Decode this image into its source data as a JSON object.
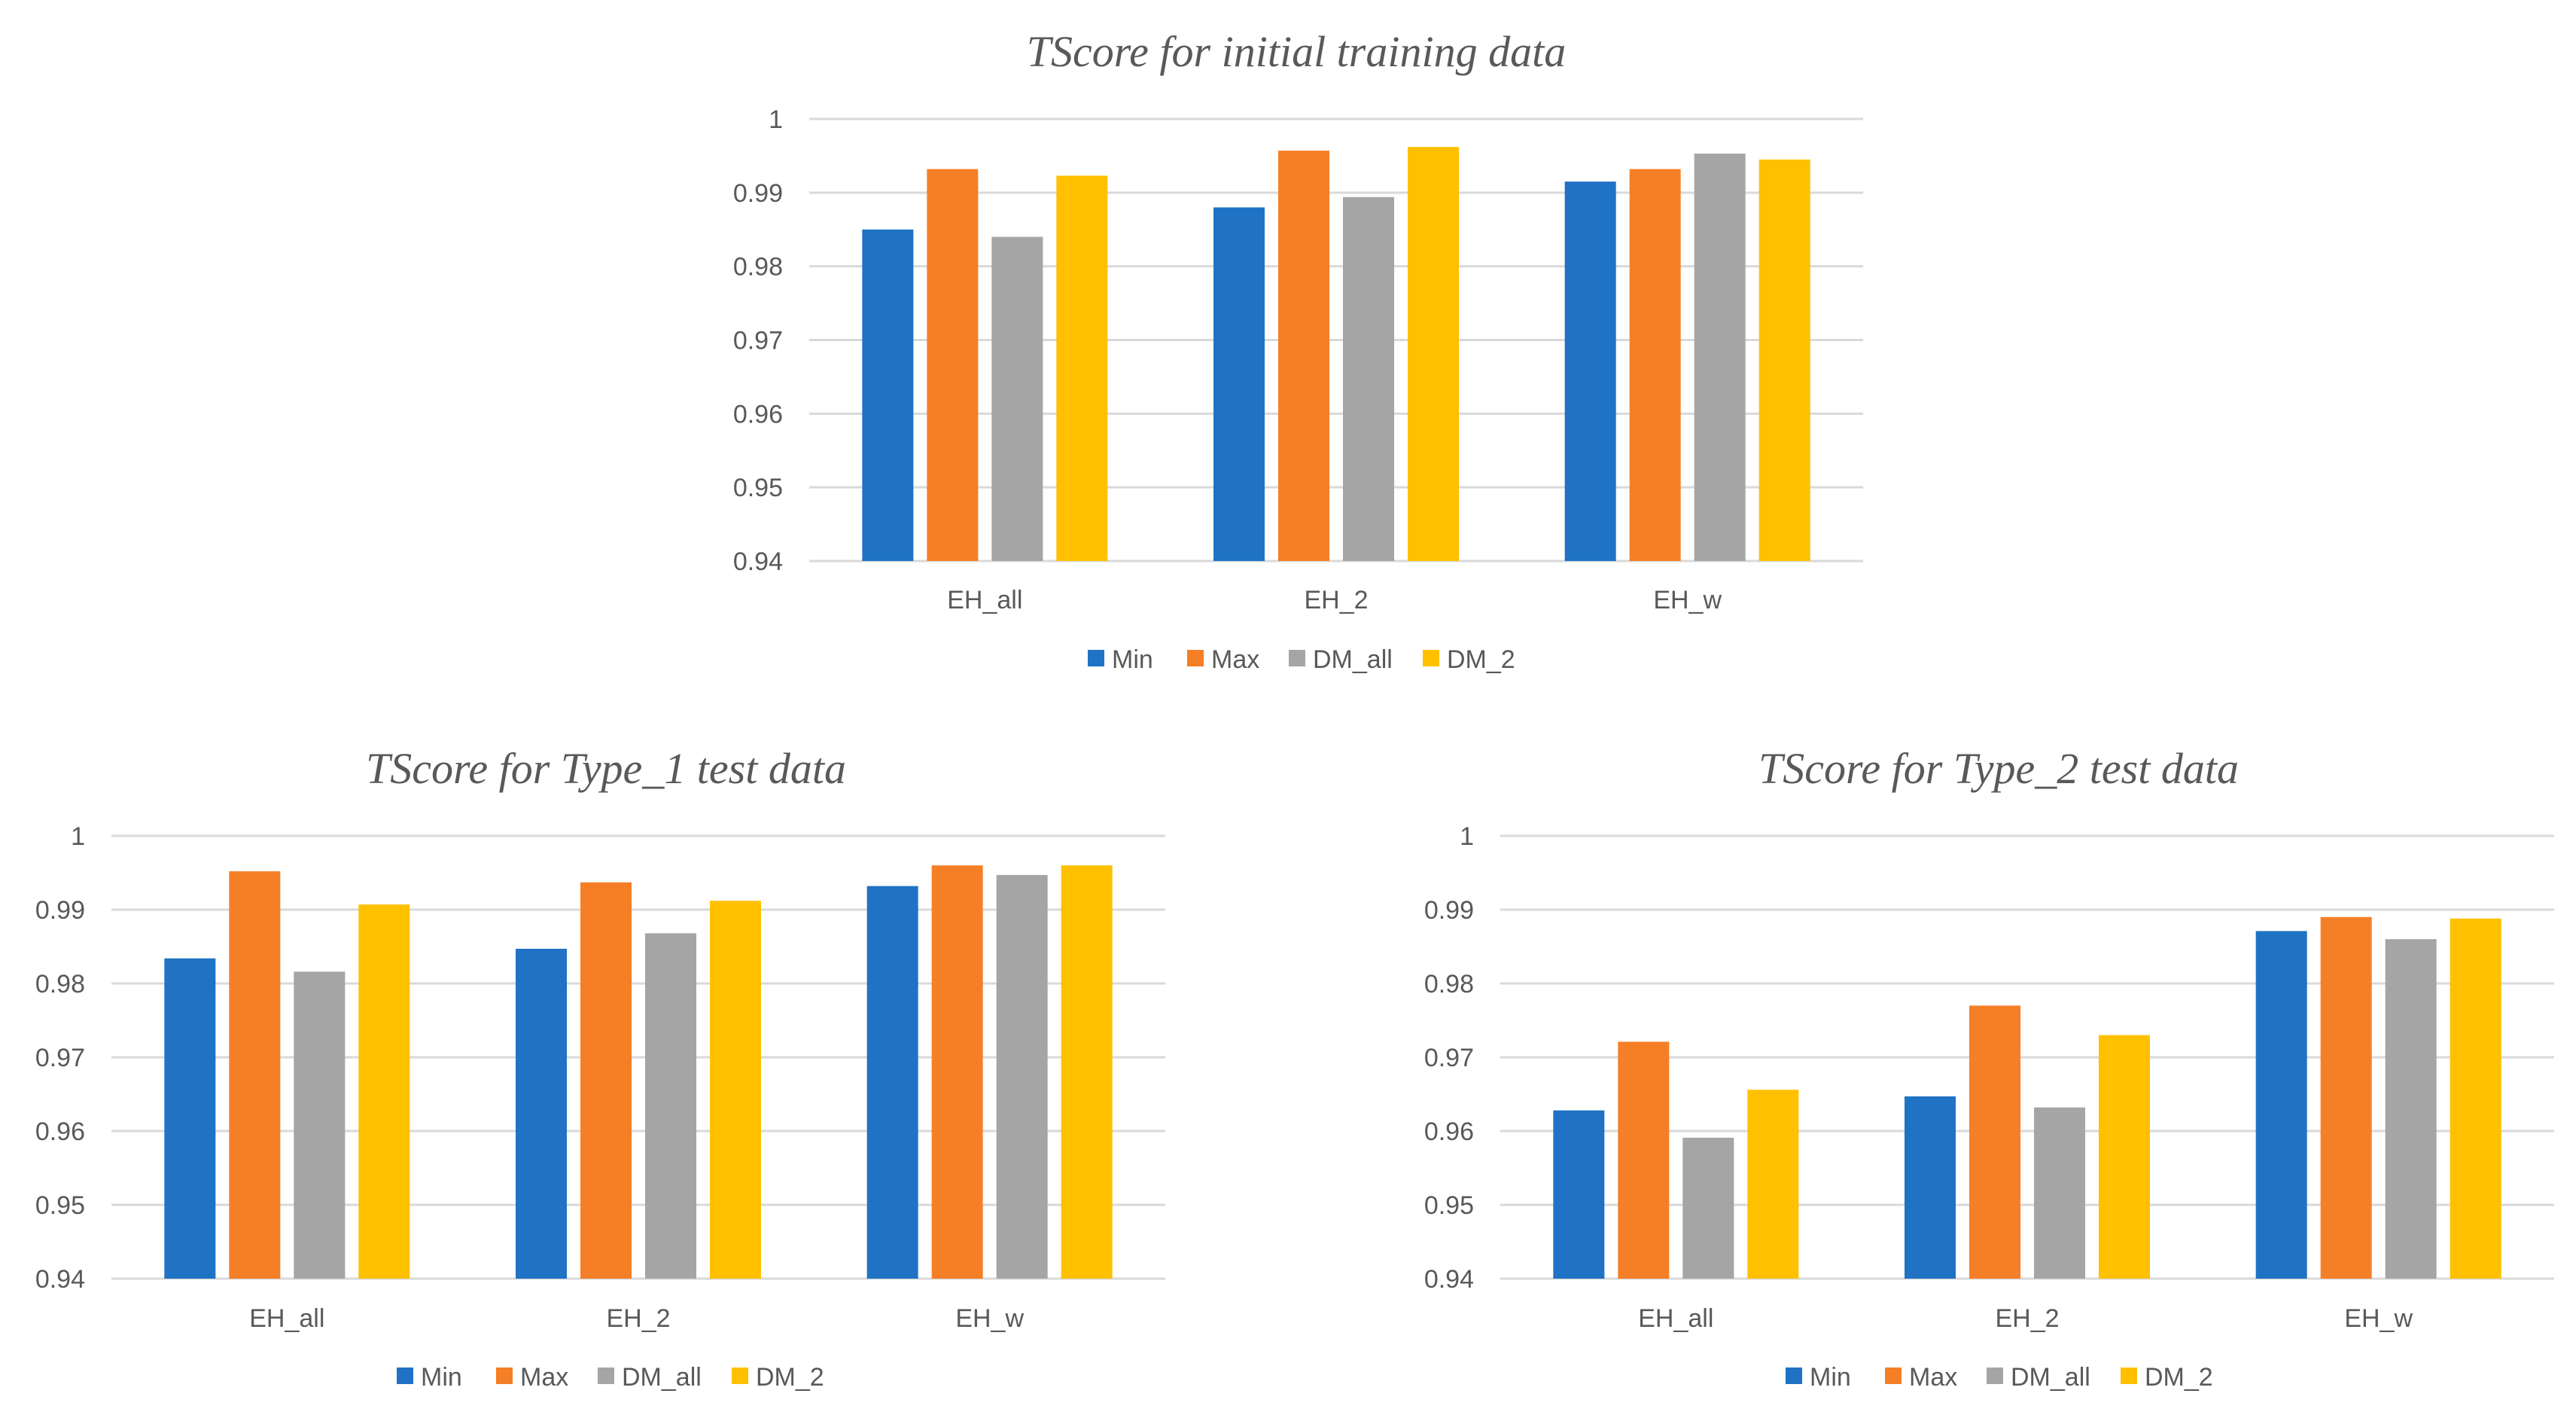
{
  "colors": {
    "Min": "#1f72c4",
    "Max": "#f57f26",
    "DM_all": "#a5a5a5",
    "DM_2": "#ffc000"
  },
  "chart_data": [
    {
      "type": "bar",
      "title": "TScore for initial training data",
      "categories": [
        "EH_all",
        "EH_2",
        "EH_w"
      ],
      "series": [
        {
          "name": "Min",
          "values": [
            0.985,
            0.988,
            0.9915
          ]
        },
        {
          "name": "Max",
          "values": [
            0.9932,
            0.9957,
            0.9932
          ]
        },
        {
          "name": "DM_all",
          "values": [
            0.984,
            0.9894,
            0.9953
          ]
        },
        {
          "name": "DM_2",
          "values": [
            0.9923,
            0.9962,
            0.9945
          ]
        }
      ],
      "ylim": [
        0.94,
        1
      ],
      "yticks": [
        "0.94",
        "0.95",
        "0.96",
        "0.97",
        "0.98",
        "0.99",
        "1"
      ],
      "xlabel": "",
      "ylabel": "",
      "legend": "bottom"
    },
    {
      "type": "bar",
      "title": "TScore for Type_1 test data",
      "categories": [
        "EH_all",
        "EH_2",
        "EH_w"
      ],
      "series": [
        {
          "name": "Min",
          "values": [
            0.9834,
            0.9847,
            0.9932
          ]
        },
        {
          "name": "Max",
          "values": [
            0.9952,
            0.9937,
            0.996
          ]
        },
        {
          "name": "DM_all",
          "values": [
            0.9816,
            0.9868,
            0.9947
          ]
        },
        {
          "name": "DM_2",
          "values": [
            0.9907,
            0.9912,
            0.996
          ]
        }
      ],
      "ylim": [
        0.94,
        1
      ],
      "yticks": [
        "0.94",
        "0.95",
        "0.96",
        "0.97",
        "0.98",
        "0.99",
        "1"
      ],
      "xlabel": "",
      "ylabel": "",
      "legend": "bottom"
    },
    {
      "type": "bar",
      "title": "TScore for Type_2 test data",
      "categories": [
        "EH_all",
        "EH_2",
        "EH_w"
      ],
      "series": [
        {
          "name": "Min",
          "values": [
            0.9628,
            0.9647,
            0.9871
          ]
        },
        {
          "name": "Max",
          "values": [
            0.9721,
            0.977,
            0.989
          ]
        },
        {
          "name": "DM_all",
          "values": [
            0.9591,
            0.9632,
            0.986
          ]
        },
        {
          "name": "DM_2",
          "values": [
            0.9656,
            0.973,
            0.9888
          ]
        }
      ],
      "ylim": [
        0.94,
        1
      ],
      "yticks": [
        "0.94",
        "0.95",
        "0.96",
        "0.97",
        "0.98",
        "0.99",
        "1"
      ],
      "xlabel": "",
      "ylabel": "",
      "legend": "bottom"
    }
  ]
}
